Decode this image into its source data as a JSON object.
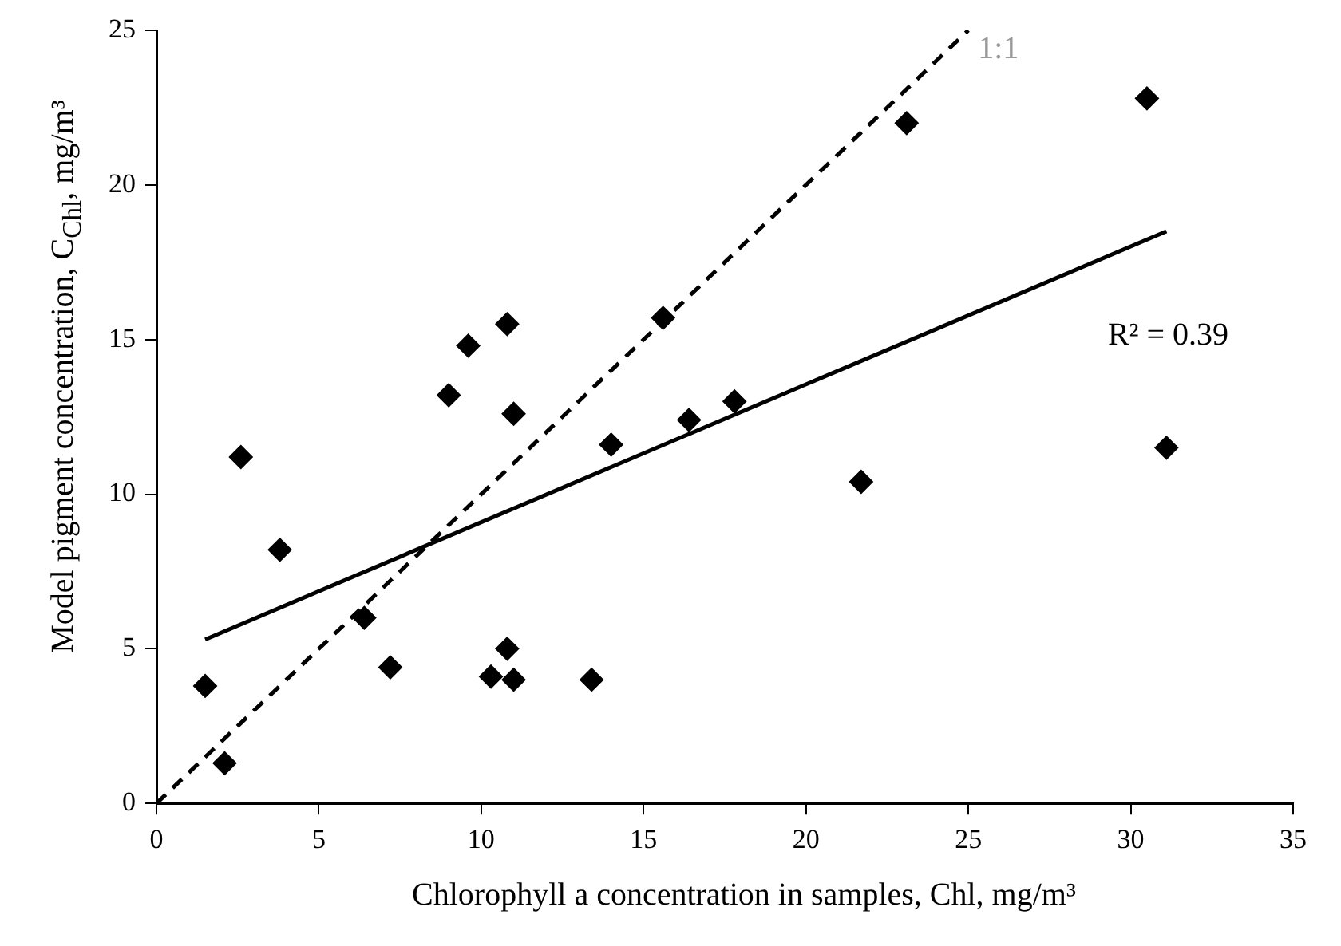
{
  "chart_data": {
    "type": "scatter",
    "xlabel": "Chlorophyll a concentration in samples, Chl, mg/m³",
    "ylabel": "Model pigment concentration, C$_{Chl}$, mg/m³",
    "xlim": [
      0,
      35
    ],
    "xticks": [
      0,
      5,
      10,
      15,
      20,
      25,
      30,
      35
    ],
    "ylim": [
      0,
      25
    ],
    "yticks": [
      0,
      5,
      10,
      15,
      20,
      25
    ],
    "grid": false,
    "legend": false,
    "annotations": [
      "R² = 0.39"
    ],
    "series": [
      {
        "type": "line",
        "name": "1:1",
        "x": [
          0,
          25
        ],
        "values": [
          0,
          25
        ],
        "color": "#000000",
        "line_style": "dashed",
        "marker": "none"
      },
      {
        "type": "line",
        "x": [
          1.5,
          31.1
        ],
        "values": [
          5.3,
          18.5
        ],
        "color": "#000000",
        "line_style": "solid",
        "marker": "none"
      },
      {
        "x": [
          1.5,
          2.1,
          2.6,
          3.8,
          6.4,
          7.2,
          9.0,
          9.6,
          10.3,
          10.8,
          10.8,
          11.0,
          11.0,
          13.4,
          14.0,
          15.6,
          16.4,
          17.8,
          21.7,
          23.1,
          30.5,
          31.1
        ],
        "values": [
          3.8,
          1.3,
          11.2,
          8.2,
          6.0,
          4.4,
          13.2,
          14.8,
          4.1,
          5.0,
          15.5,
          12.6,
          4.0,
          4.0,
          11.6,
          15.7,
          12.4,
          13.0,
          10.4,
          22.0,
          22.8,
          11.5
        ],
        "color": "#000000",
        "marker": "diamond"
      }
    ]
  }
}
